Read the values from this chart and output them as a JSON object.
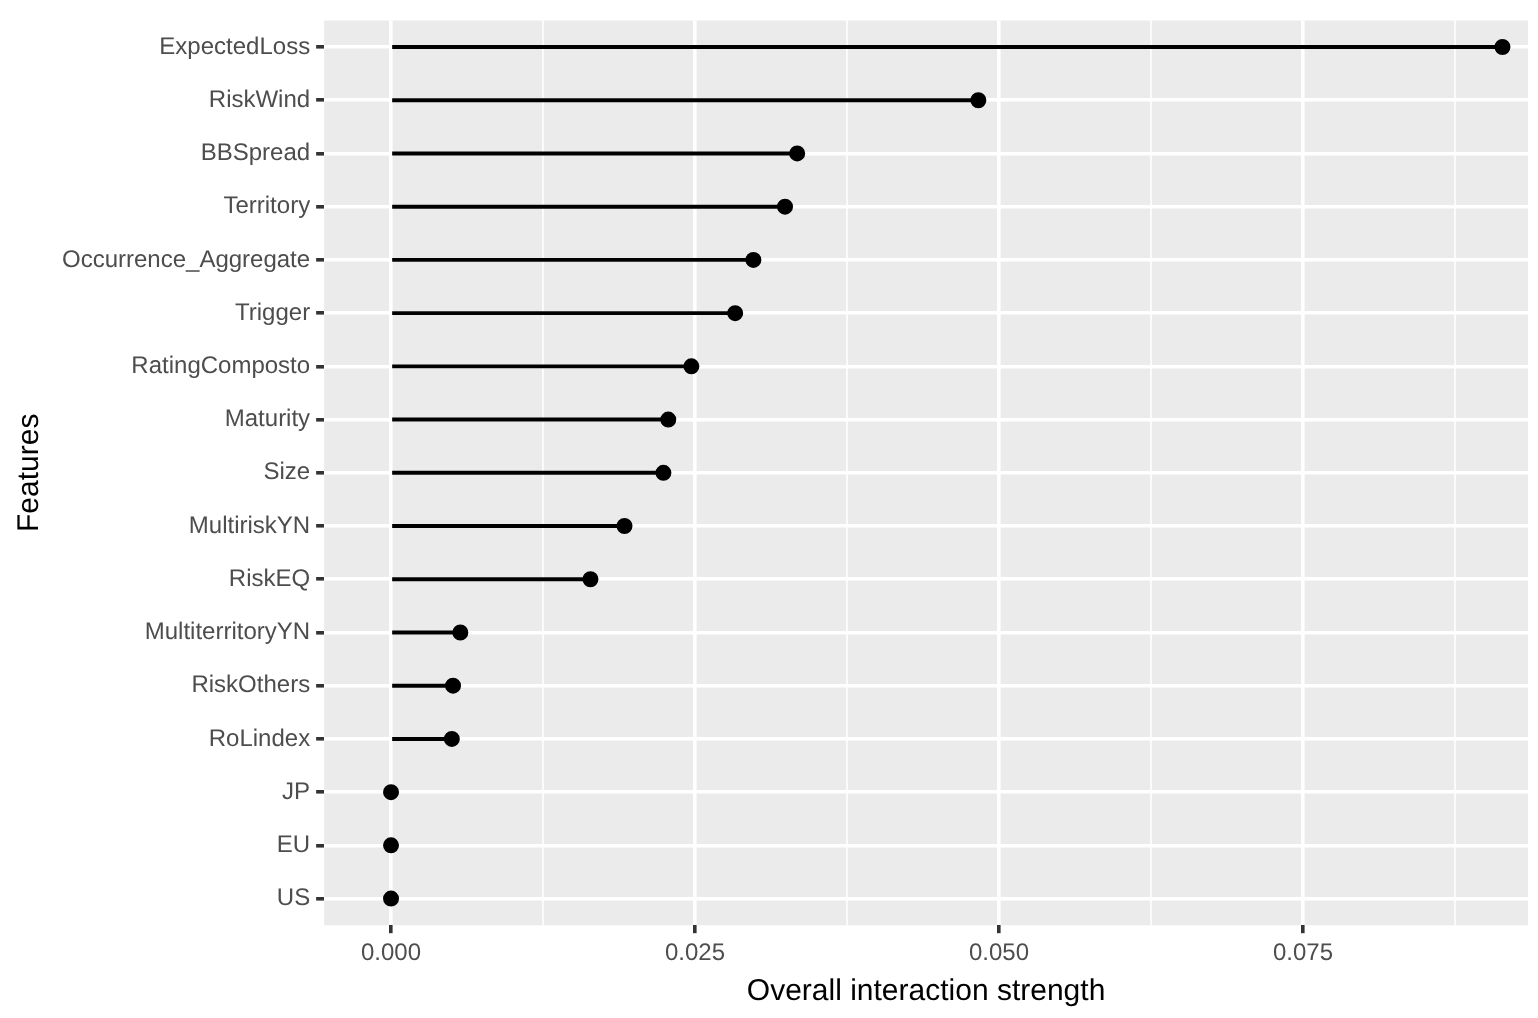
{
  "chart_data": {
    "type": "lollipop",
    "orientation": "horizontal",
    "xlabel": "Overall interaction strength",
    "ylabel": "Features",
    "categories": [
      "ExpectedLoss",
      "RiskWind",
      "BBSpread",
      "Territory",
      "Occurrence_Aggregate",
      "Trigger",
      "RatingComposto",
      "Maturity",
      "Size",
      "MultiriskYN",
      "RiskEQ",
      "MultiterritoryYN",
      "RiskOthers",
      "RoLindex",
      "JP",
      "EU",
      "US"
    ],
    "values": [
      0.0914,
      0.0483,
      0.0334,
      0.0324,
      0.0298,
      0.0283,
      0.0247,
      0.0228,
      0.0224,
      0.0192,
      0.0164,
      0.0057,
      0.0051,
      0.005,
      0,
      0,
      0
    ],
    "color": "#000000",
    "marker": "circle",
    "xlim": [
      -0.0055,
      0.0935
    ],
    "xticks": [
      {
        "value": 0,
        "label": "0.000"
      },
      {
        "value": 0.0125,
        "label": null
      },
      {
        "value": 0.025,
        "label": "0.025"
      },
      {
        "value": 0.0375,
        "label": null
      },
      {
        "value": 0.05,
        "label": "0.050"
      },
      {
        "value": 0.0625,
        "label": null
      },
      {
        "value": 0.075,
        "label": "0.075"
      },
      {
        "value": 0.0875,
        "label": null
      }
    ],
    "grid": true
  }
}
